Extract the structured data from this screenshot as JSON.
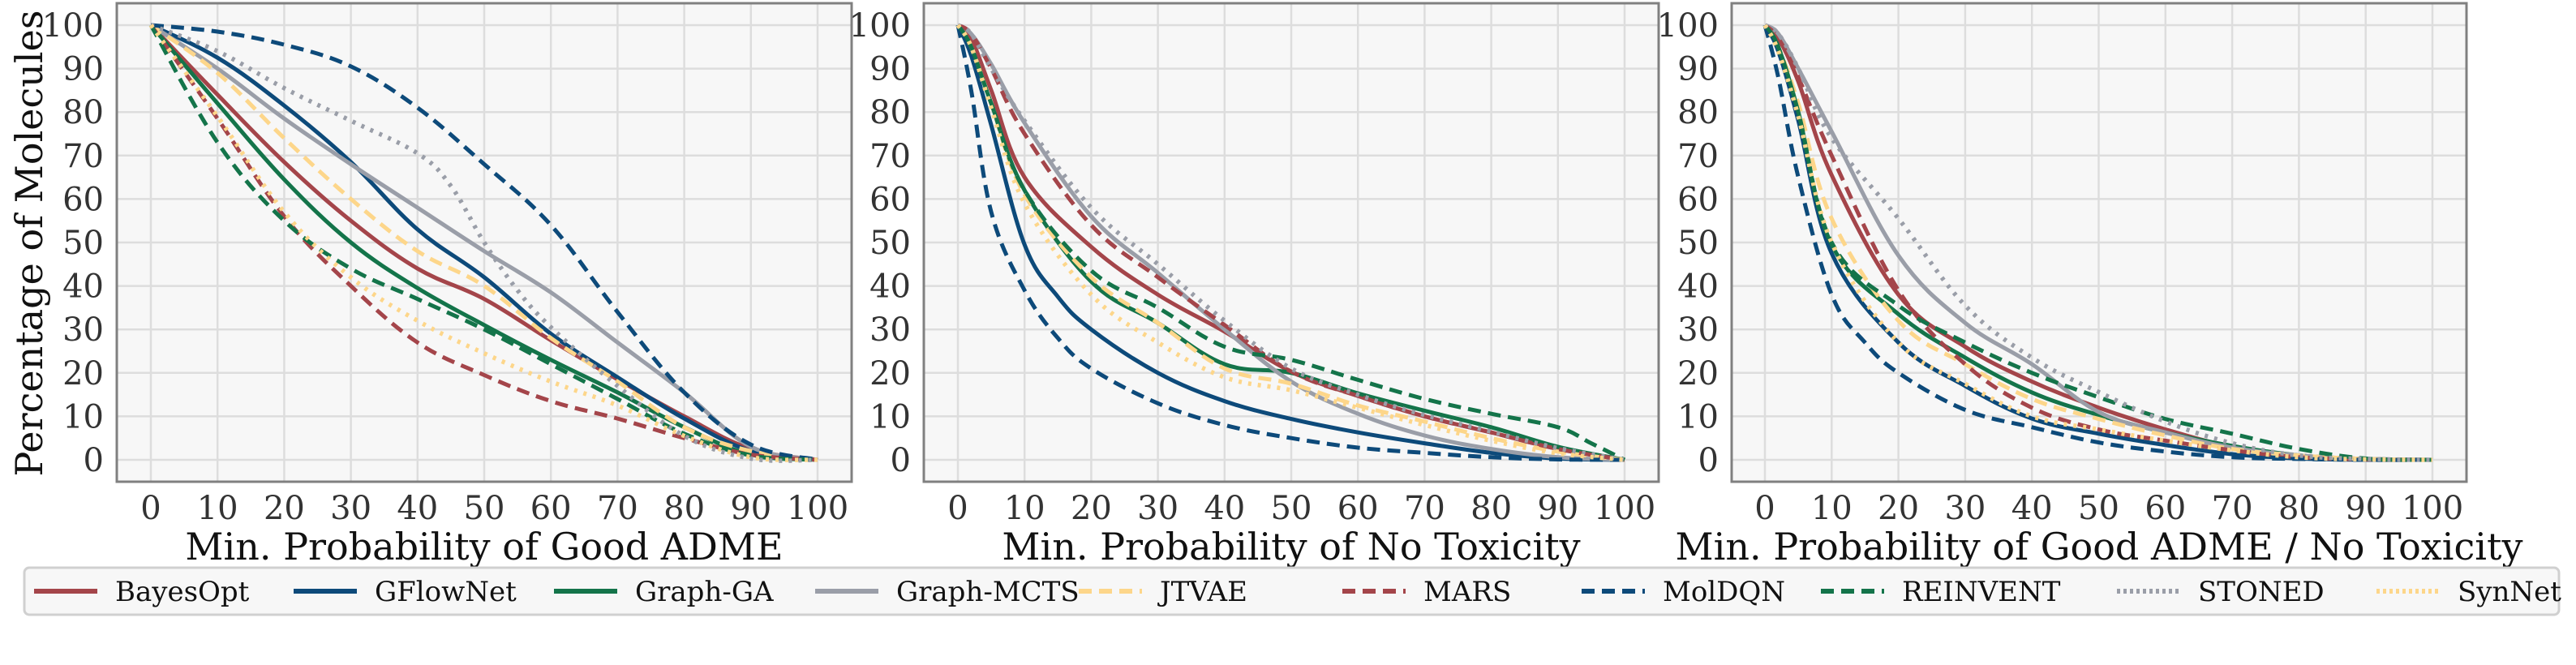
{
  "chart_data": [
    {
      "type": "line",
      "title": "",
      "xlabel": "Min. Probability of Good ADME",
      "ylabel": "Percentage of Molecules",
      "xlim": [
        0,
        100
      ],
      "ylim": [
        0,
        100
      ],
      "xticks": [
        "0",
        "10",
        "20",
        "30",
        "40",
        "50",
        "60",
        "70",
        "80",
        "90",
        "100"
      ],
      "yticks": [
        "0",
        "10",
        "20",
        "30",
        "40",
        "50",
        "60",
        "70",
        "80",
        "90",
        "100"
      ],
      "grid": true,
      "series": [
        {
          "name": "BayesOpt",
          "x": [
            0,
            10,
            20,
            30,
            40,
            50,
            60,
            70,
            80,
            90,
            100
          ],
          "y": [
            100,
            84,
            68.5,
            55,
            44,
            37,
            27.5,
            18.5,
            10,
            2.5,
            0
          ]
        },
        {
          "name": "GFlowNet",
          "x": [
            0,
            10,
            20,
            30,
            40,
            50,
            60,
            70,
            80,
            90,
            100
          ],
          "y": [
            100,
            92.5,
            81.5,
            68.5,
            53,
            42,
            29,
            19,
            9.5,
            2,
            0
          ]
        },
        {
          "name": "Graph-GA",
          "x": [
            0,
            10,
            20,
            30,
            40,
            50,
            60,
            70,
            80,
            90,
            100
          ],
          "y": [
            100,
            82,
            64.5,
            50,
            39.5,
            31,
            23,
            15.5,
            7.5,
            1.2,
            0
          ]
        },
        {
          "name": "Graph-MCTS",
          "x": [
            0,
            10,
            20,
            30,
            40,
            50,
            60,
            70,
            80,
            90,
            100
          ],
          "y": [
            100,
            90,
            78.5,
            68,
            58,
            48,
            38.5,
            27,
            15.5,
            3,
            0
          ]
        },
        {
          "name": "JTVAE",
          "x": [
            0,
            10,
            20,
            30,
            40,
            50,
            60,
            70,
            80,
            90,
            100
          ],
          "y": [
            100,
            89,
            74,
            60,
            48,
            40,
            28,
            18,
            7.5,
            2,
            0
          ]
        },
        {
          "name": "MARS",
          "x": [
            0,
            10,
            20,
            30,
            40,
            50,
            60,
            70,
            80,
            90,
            100
          ],
          "y": [
            100,
            78.5,
            56,
            40,
            27,
            19.5,
            13.5,
            9.5,
            5,
            1.2,
            0
          ]
        },
        {
          "name": "MolDQN",
          "x": [
            0,
            10,
            20,
            30,
            40,
            50,
            60,
            70,
            80,
            90,
            100
          ],
          "y": [
            100,
            98.5,
            95.5,
            90.5,
            81,
            68,
            54,
            34,
            15.5,
            3.5,
            0
          ]
        },
        {
          "name": "REINVENT",
          "x": [
            0,
            10,
            20,
            30,
            40,
            50,
            60,
            70,
            80,
            90,
            100
          ],
          "y": [
            100,
            73,
            55,
            44,
            37,
            30,
            22,
            14,
            6,
            1,
            0
          ]
        },
        {
          "name": "STONED",
          "x": [
            0,
            10,
            20,
            30,
            40,
            45,
            50,
            55,
            60,
            70,
            80,
            90,
            100
          ],
          "y": [
            100,
            94,
            85.5,
            78,
            70.5,
            63,
            50,
            39,
            30.5,
            17,
            5.5,
            0.3,
            0
          ]
        },
        {
          "name": "SynNet",
          "x": [
            0,
            10,
            20,
            30,
            40,
            50,
            60,
            70,
            80,
            90,
            100
          ],
          "y": [
            100,
            79,
            57,
            42,
            32,
            24.5,
            18,
            12.5,
            5.5,
            0.6,
            0
          ]
        }
      ]
    },
    {
      "type": "line",
      "title": "",
      "xlabel": "Min. Probability of No Toxicity",
      "ylabel": "",
      "xlim": [
        0,
        100
      ],
      "ylim": [
        0,
        100
      ],
      "xticks": [
        "0",
        "10",
        "20",
        "30",
        "40",
        "50",
        "60",
        "70",
        "80",
        "90",
        "100"
      ],
      "yticks": [
        "0",
        "10",
        "20",
        "30",
        "40",
        "50",
        "60",
        "70",
        "80",
        "90",
        "100"
      ],
      "grid": true,
      "series": [
        {
          "name": "BayesOpt",
          "x": [
            0,
            2,
            5,
            10,
            20,
            30,
            40,
            50,
            60,
            70,
            80,
            90,
            100
          ],
          "y": [
            100,
            97,
            85,
            65,
            49,
            38,
            29.5,
            20.3,
            14.7,
            10,
            6.3,
            2.5,
            0
          ]
        },
        {
          "name": "GFlowNet",
          "x": [
            0,
            2,
            5,
            10,
            15,
            20,
            30,
            40,
            50,
            60,
            70,
            80,
            90,
            100
          ],
          "y": [
            100,
            93,
            77,
            49.5,
            37.5,
            30,
            20,
            13.5,
            9.4,
            6.3,
            3.8,
            1.6,
            0.3,
            0
          ]
        },
        {
          "name": "Graph-GA",
          "x": [
            0,
            2,
            5,
            10,
            20,
            30,
            40,
            50,
            60,
            70,
            80,
            90,
            100
          ],
          "y": [
            100,
            95,
            82,
            62,
            41,
            31.5,
            22,
            20,
            15.3,
            11.3,
            7.5,
            3,
            0
          ]
        },
        {
          "name": "Graph-MCTS",
          "x": [
            0,
            2,
            5,
            10,
            20,
            30,
            40,
            50,
            60,
            70,
            80,
            90,
            100
          ],
          "y": [
            100,
            98,
            91,
            77.5,
            56,
            43,
            30,
            18,
            10.6,
            5.6,
            2.5,
            0.6,
            0
          ]
        },
        {
          "name": "JTVAE",
          "x": [
            0,
            2,
            5,
            10,
            20,
            30,
            40,
            50,
            60,
            70,
            80,
            90,
            100
          ],
          "y": [
            100,
            95,
            82,
            61,
            42,
            31.5,
            21,
            17.5,
            12.5,
            8.8,
            5,
            1.9,
            0
          ]
        },
        {
          "name": "MARS",
          "x": [
            0,
            2,
            5,
            10,
            20,
            30,
            40,
            50,
            60,
            70,
            80,
            90,
            100
          ],
          "y": [
            100,
            98,
            90,
            75,
            54,
            42,
            31,
            20.3,
            14.7,
            10,
            6.3,
            2.5,
            0
          ]
        },
        {
          "name": "MolDQN",
          "x": [
            0,
            2,
            5,
            10,
            15,
            20,
            30,
            40,
            50,
            60,
            70,
            80,
            90,
            100
          ],
          "y": [
            100,
            85,
            57,
            39,
            28,
            21,
            13,
            8,
            5,
            2.8,
            1.6,
            0.6,
            0.1,
            0
          ]
        },
        {
          "name": "REINVENT",
          "x": [
            0,
            2,
            5,
            10,
            20,
            30,
            40,
            50,
            60,
            70,
            80,
            90,
            95,
            100
          ],
          "y": [
            100,
            95,
            82,
            62,
            43.5,
            35,
            26,
            23,
            18.4,
            14,
            10.6,
            7.5,
            3.8,
            0
          ]
        },
        {
          "name": "STONED",
          "x": [
            0,
            2,
            5,
            10,
            20,
            30,
            40,
            50,
            60,
            70,
            80,
            90,
            100
          ],
          "y": [
            100,
            98,
            90,
            78,
            58,
            45,
            32,
            21,
            15,
            10.3,
            6.5,
            2.7,
            0
          ]
        },
        {
          "name": "SynNet",
          "x": [
            0,
            2,
            5,
            10,
            20,
            30,
            40,
            50,
            60,
            70,
            80,
            90,
            100
          ],
          "y": [
            100,
            95,
            81,
            59,
            38,
            27,
            19,
            16,
            12,
            8,
            4.4,
            1.5,
            0
          ]
        }
      ]
    },
    {
      "type": "line",
      "title": "",
      "xlabel": "Min. Probability of Good ADME / No Toxicity",
      "ylabel": "",
      "xlim": [
        0,
        100
      ],
      "ylim": [
        0,
        100
      ],
      "xticks": [
        "0",
        "10",
        "20",
        "30",
        "40",
        "50",
        "60",
        "70",
        "80",
        "90",
        "100"
      ],
      "yticks": [
        "0",
        "10",
        "20",
        "30",
        "40",
        "50",
        "60",
        "70",
        "80",
        "90",
        "100"
      ],
      "grid": true,
      "series": [
        {
          "name": "BayesOpt",
          "x": [
            0,
            2,
            5,
            10,
            20,
            30,
            40,
            50,
            60,
            70,
            80,
            90,
            100
          ],
          "y": [
            100,
            97,
            87,
            65.5,
            38,
            26,
            18,
            12,
            7,
            3,
            1,
            0.2,
            0
          ]
        },
        {
          "name": "GFlowNet",
          "x": [
            0,
            2,
            5,
            10,
            20,
            30,
            40,
            50,
            60,
            70,
            80,
            90,
            100
          ],
          "y": [
            100,
            94,
            78,
            47.5,
            27,
            17,
            9.5,
            6,
            3.4,
            1.3,
            0.3,
            0,
            0
          ]
        },
        {
          "name": "Graph-GA",
          "x": [
            0,
            2,
            5,
            10,
            20,
            30,
            40,
            50,
            60,
            70,
            80,
            90,
            100
          ],
          "y": [
            100,
            95,
            80,
            49.5,
            33.5,
            23.5,
            15.5,
            10.3,
            6.3,
            3.2,
            1,
            0.2,
            0
          ]
        },
        {
          "name": "Graph-MCTS",
          "x": [
            0,
            2,
            5,
            10,
            20,
            30,
            40,
            50,
            60,
            70,
            80,
            90,
            100
          ],
          "y": [
            100,
            98,
            90,
            75.5,
            47,
            31.5,
            22,
            11,
            6.3,
            2.8,
            1,
            0.2,
            0
          ]
        },
        {
          "name": "JTVAE",
          "x": [
            0,
            2,
            5,
            10,
            20,
            30,
            40,
            50,
            60,
            70,
            80,
            90,
            100
          ],
          "y": [
            100,
            95,
            82,
            55.5,
            32,
            22,
            14,
            9.4,
            5.6,
            2.5,
            1,
            0.2,
            0
          ]
        },
        {
          "name": "MARS",
          "x": [
            0,
            2,
            5,
            10,
            20,
            30,
            40,
            50,
            60,
            70,
            80,
            90,
            100
          ],
          "y": [
            100,
            97,
            88,
            70,
            39,
            22,
            12,
            7,
            4.4,
            2.2,
            0.6,
            0.1,
            0
          ]
        },
        {
          "name": "MolDQN",
          "x": [
            0,
            2,
            5,
            10,
            15,
            20,
            30,
            40,
            50,
            60,
            70,
            80,
            90,
            100
          ],
          "y": [
            100,
            88,
            65,
            38,
            27,
            20,
            11.5,
            7.5,
            4,
            1.9,
            0.6,
            0.2,
            0,
            0
          ]
        },
        {
          "name": "REINVENT",
          "x": [
            0,
            2,
            5,
            10,
            20,
            30,
            40,
            50,
            60,
            70,
            80,
            90,
            100
          ],
          "y": [
            100,
            95,
            80,
            50,
            35.5,
            27,
            20,
            14.4,
            9.4,
            6,
            2.5,
            0.3,
            0
          ]
        },
        {
          "name": "STONED",
          "x": [
            0,
            2,
            5,
            10,
            20,
            30,
            40,
            50,
            60,
            70,
            80,
            90,
            100
          ],
          "y": [
            100,
            98,
            90,
            74,
            55.5,
            35.5,
            23.5,
            15.6,
            8.8,
            3.8,
            1,
            0.2,
            0
          ]
        },
        {
          "name": "SynNet",
          "x": [
            0,
            2,
            5,
            10,
            20,
            30,
            40,
            50,
            60,
            70,
            80,
            90,
            100
          ],
          "y": [
            100,
            94,
            79,
            50,
            27,
            17.5,
            10,
            7,
            4.4,
            2.2,
            0.6,
            0.1,
            0
          ]
        }
      ]
    }
  ],
  "legend": {
    "placement": "bottom",
    "entries": [
      {
        "name": "BayesOpt",
        "color": "#a4454a",
        "style": "solid"
      },
      {
        "name": "GFlowNet",
        "color": "#0d4a7a",
        "style": "solid"
      },
      {
        "name": "Graph-GA",
        "color": "#14744a",
        "style": "solid"
      },
      {
        "name": "Graph-MCTS",
        "color": "#9a9ea8",
        "style": "solid"
      },
      {
        "name": "JTVAE",
        "color": "#fdd68a",
        "style": "dashed"
      },
      {
        "name": "MARS",
        "color": "#a4454a",
        "style": "dashed"
      },
      {
        "name": "MolDQN",
        "color": "#0d4a7a",
        "style": "dashed"
      },
      {
        "name": "REINVENT",
        "color": "#14744a",
        "style": "dashed"
      },
      {
        "name": "STONED",
        "color": "#9a9ea8",
        "style": "dotted"
      },
      {
        "name": "SynNet",
        "color": "#fdd68a",
        "style": "dotted"
      }
    ]
  },
  "colors": {
    "plot_background": "#f7f7f7",
    "grid": "#dddddd",
    "frame": "#808080"
  }
}
